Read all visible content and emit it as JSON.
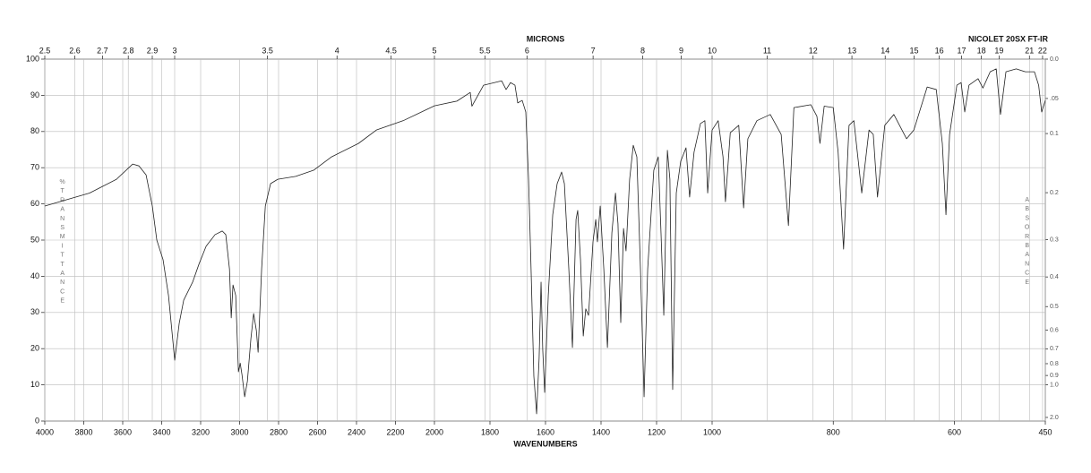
{
  "chart_data": {
    "type": "line",
    "title": "NICOLET 20SX FT-IR",
    "x_label": "WAVENUMBERS",
    "x2_label": "MICRONS",
    "y_label": "%TRANSMITTANCE",
    "y2_label": "ABSORBANCE",
    "color": "#222222",
    "grid": true,
    "y2_scale": "absorbance",
    "xlim": [
      4000,
      450
    ],
    "xticks": [
      4000,
      3800,
      3600,
      3400,
      3200,
      3000,
      2800,
      2600,
      2400,
      2200,
      2000,
      1800,
      1600,
      1400,
      1200,
      1000,
      800,
      600,
      450
    ],
    "x2ticks": [
      2.5,
      2.6,
      2.7,
      2.8,
      2.9,
      3,
      3.5,
      4,
      4.5,
      5,
      5.5,
      6,
      7,
      8,
      9,
      10,
      11,
      12,
      13,
      14,
      15,
      16,
      17,
      18,
      19,
      21,
      22
    ],
    "ylim": [
      0,
      100
    ],
    "yticks": [
      0,
      10,
      20,
      30,
      40,
      50,
      60,
      70,
      80,
      90,
      100
    ],
    "y2ticks": [
      {
        "value": 0,
        "label": "0.0"
      },
      {
        "value": 0.05,
        "label": ".05"
      },
      0.1,
      0.2,
      0.3,
      0.4,
      0.5,
      0.6,
      0.7,
      0.8,
      0.9,
      {
        "value": 1,
        "label": "1.0"
      },
      {
        "value": 2,
        "label": "2.0"
      }
    ],
    "x": [
      4000,
      3770,
      3632,
      3549,
      3517,
      3480,
      3448,
      3425,
      3393,
      3365,
      3333,
      3310,
      3287,
      3241,
      3209,
      3172,
      3126,
      3089,
      3071,
      3052,
      3043,
      3034,
      3020,
      3006,
      2997,
      2988,
      2974,
      2960,
      2942,
      2928,
      2914,
      2905,
      2887,
      2868,
      2841,
      2804,
      2712,
      2620,
      2528,
      2390,
      2298,
      2160,
      2000,
      1919,
      1871,
      1865,
      1823,
      1758,
      1742,
      1726,
      1710,
      1700,
      1684,
      1671,
      1661,
      1652,
      1642,
      1632,
      1623,
      1616,
      1610,
      1603,
      1590,
      1574,
      1558,
      1542,
      1532,
      1516,
      1503,
      1490,
      1484,
      1474,
      1464,
      1455,
      1445,
      1429,
      1419,
      1413,
      1403,
      1390,
      1377,
      1361,
      1348,
      1339,
      1329,
      1319,
      1310,
      1297,
      1284,
      1271,
      1258,
      1245,
      1232,
      1210,
      1194,
      1184,
      1174,
      1161,
      1152,
      1142,
      1129,
      1113,
      1094,
      1081,
      1065,
      1042,
      1026,
      1016,
      1000,
      990,
      982,
      978,
      970,
      956,
      948,
      941,
      926,
      904,
      886,
      874,
      865,
      837,
      827,
      822,
      815,
      800,
      792,
      783,
      774,
      766,
      753,
      741,
      734,
      727,
      715,
      700,
      679,
      667,
      645,
      630,
      620,
      614,
      608,
      596,
      589,
      583,
      576,
      561,
      553,
      541,
      531,
      524,
      515,
      498,
      483,
      468,
      461,
      456,
      450
    ],
    "values": [
      59.4,
      63,
      66.8,
      71,
      70.5,
      68,
      59.4,
      50,
      44.6,
      34.7,
      16.8,
      27,
      33.4,
      38.4,
      43.3,
      48.3,
      51.5,
      52.5,
      51.5,
      42,
      28.5,
      37.6,
      34.7,
      13.6,
      16,
      12.9,
      6.7,
      11,
      22.8,
      29.7,
      25,
      19,
      42,
      59.4,
      65.6,
      66.8,
      67.6,
      69.3,
      73,
      76.7,
      80.4,
      83,
      87.1,
      88.4,
      90.8,
      87,
      92.8,
      94,
      91.6,
      93.5,
      92.8,
      87.9,
      88.6,
      85.4,
      66.8,
      42,
      12.4,
      2,
      17.3,
      38.4,
      19.8,
      7.9,
      34.7,
      57,
      65.6,
      68.8,
      65.6,
      42,
      20.3,
      55.7,
      58.2,
      44.6,
      23.5,
      31,
      29.2,
      49.5,
      55.7,
      49.5,
      59.4,
      42,
      20.3,
      52,
      63,
      54.5,
      27.2,
      53.2,
      47,
      66.8,
      76.2,
      73,
      42,
      6.7,
      42,
      69.3,
      73,
      52,
      29.2,
      74.8,
      66.8,
      8.7,
      63,
      71.8,
      75.5,
      61.9,
      74.3,
      82.2,
      83,
      63,
      80.4,
      83,
      73,
      60.6,
      79.7,
      81.7,
      58.9,
      78,
      83,
      84.7,
      79.2,
      54,
      86.6,
      87.4,
      84.2,
      76.7,
      87,
      86.6,
      74.3,
      47.5,
      81.7,
      83,
      63,
      80.4,
      79.2,
      61.9,
      81.7,
      84.7,
      78,
      80.4,
      92.3,
      91.6,
      76.7,
      57,
      79.2,
      92.8,
      93.5,
      85.4,
      92.8,
      94.6,
      92,
      96.5,
      97.3,
      84.7,
      96.5,
      97.3,
      96.5,
      96.5,
      92.8,
      85.4,
      88.6
    ]
  }
}
